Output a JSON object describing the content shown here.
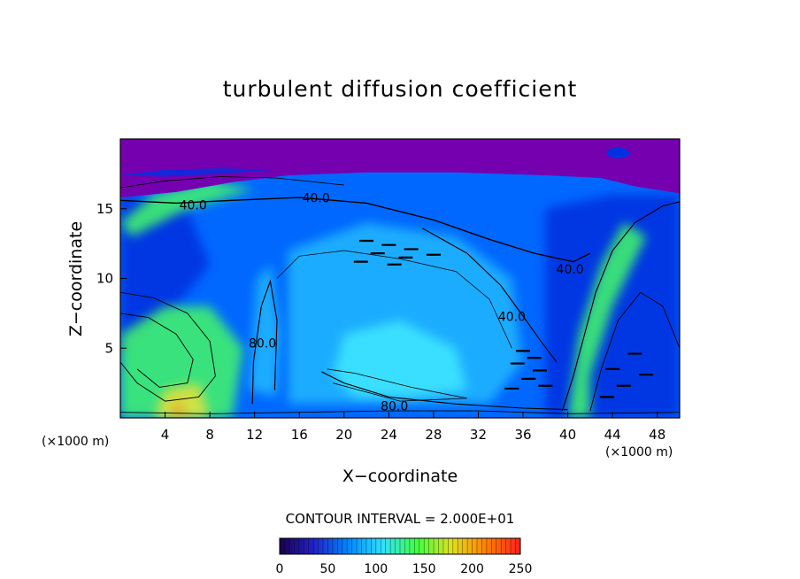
{
  "chart_data": {
    "type": "heatmap",
    "title": "turbulent diffusion coefficient",
    "xlabel": "X−coordinate",
    "ylabel": "Z−coordinate",
    "x_unit_left": "(×1000 m)",
    "x_unit_right": "(×1000 m)",
    "xlim": [
      0,
      50
    ],
    "ylim": [
      0,
      20
    ],
    "x_ticks": [
      4,
      8,
      12,
      16,
      20,
      24,
      28,
      32,
      36,
      40,
      44,
      48
    ],
    "y_ticks": [
      5,
      10,
      15
    ],
    "contour_interval_text": "CONTOUR INTERVAL = 2.000E+01",
    "colorbar": {
      "min": 0,
      "max": 250,
      "ticks": [
        0,
        50,
        100,
        150,
        200,
        250
      ],
      "stops": [
        "#1a0050",
        "#2222cc",
        "#0088ff",
        "#30e0ff",
        "#40ff40",
        "#e0e020",
        "#ff8000",
        "#ff2020"
      ]
    },
    "field_colors": {
      "top_layer": "#7400b0",
      "deep_blue": "#0030e0",
      "mid_blue": "#0068ff",
      "light_blue": "#20b8ff",
      "cyan": "#40e8ff",
      "green": "#40f070",
      "yellow": "#e0e040",
      "orange": "#f0a020"
    },
    "contour_labels": [
      {
        "text": "40.0",
        "x": 17.5,
        "z": 15.7
      },
      {
        "text": "40.0",
        "x": 6.5,
        "z": 15.2
      },
      {
        "text": "40.0",
        "x": 40.2,
        "z": 10.6
      },
      {
        "text": "40.0",
        "x": 35.0,
        "z": 7.2
      },
      {
        "text": "80.0",
        "x": 12.7,
        "z": 5.3
      },
      {
        "text": "80.0",
        "x": 24.5,
        "z": 0.8
      }
    ]
  }
}
